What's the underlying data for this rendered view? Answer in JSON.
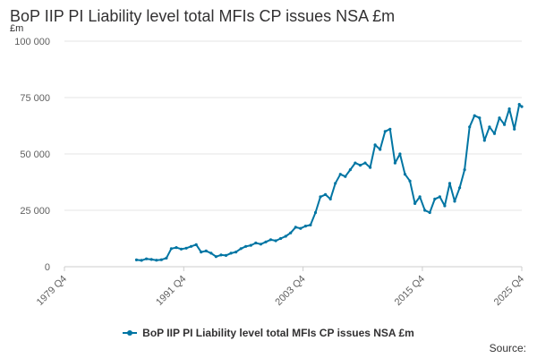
{
  "chart_data": {
    "type": "line",
    "title": "BoP IIP PI Liability level total MFIs CP issues NSA £m",
    "ylabel": "£m",
    "xlabel": "",
    "ylim": [
      0,
      100000
    ],
    "yticks": [
      0,
      25000,
      50000,
      75000,
      100000
    ],
    "ytick_labels": [
      "0",
      "25 000",
      "50 000",
      "75 000",
      "100 000"
    ],
    "x_range": [
      "1979 Q4",
      "2025 Q4"
    ],
    "xtick_labels": [
      "1979 Q4",
      "1991 Q4",
      "2003 Q4",
      "2015 Q4",
      "2025 Q4"
    ],
    "grid": true,
    "legend_position": "bottom",
    "series": [
      {
        "name": "BoP IIP PI Liability level total MFIs CP issues NSA £m",
        "color": "#0075a3",
        "x": [
          "1987 Q1",
          "1987 Q3",
          "1988 Q1",
          "1988 Q3",
          "1989 Q1",
          "1989 Q3",
          "1990 Q1",
          "1990 Q3",
          "1991 Q1",
          "1991 Q3",
          "1992 Q1",
          "1992 Q3",
          "1993 Q1",
          "1993 Q3",
          "1994 Q1",
          "1994 Q3",
          "1995 Q1",
          "1995 Q3",
          "1996 Q1",
          "1996 Q3",
          "1997 Q1",
          "1997 Q3",
          "1998 Q1",
          "1998 Q3",
          "1999 Q1",
          "1999 Q3",
          "2000 Q1",
          "2000 Q3",
          "2001 Q1",
          "2001 Q3",
          "2002 Q1",
          "2002 Q3",
          "2003 Q1",
          "2003 Q3",
          "2004 Q1",
          "2004 Q3",
          "2005 Q1",
          "2005 Q3",
          "2006 Q1",
          "2006 Q3",
          "2007 Q1",
          "2007 Q3",
          "2008 Q1",
          "2008 Q3",
          "2009 Q1",
          "2009 Q3",
          "2010 Q1",
          "2010 Q3",
          "2011 Q1",
          "2011 Q3",
          "2012 Q1",
          "2012 Q3",
          "2013 Q1",
          "2013 Q3",
          "2014 Q1",
          "2014 Q3",
          "2015 Q1",
          "2015 Q3",
          "2016 Q1",
          "2016 Q3",
          "2017 Q1",
          "2017 Q3",
          "2018 Q1",
          "2018 Q3",
          "2019 Q1",
          "2019 Q3",
          "2020 Q1",
          "2020 Q3",
          "2021 Q1",
          "2021 Q3",
          "2022 Q1",
          "2022 Q3",
          "2023 Q1",
          "2023 Q3",
          "2024 Q1",
          "2024 Q3",
          "2025 Q1",
          "2025 Q3",
          "2025 Q4"
        ],
        "values": [
          3000,
          2800,
          3500,
          3200,
          2900,
          3100,
          3800,
          8000,
          8500,
          7800,
          8200,
          9000,
          9800,
          6500,
          7000,
          6000,
          4500,
          5200,
          5000,
          6000,
          6500,
          8000,
          9000,
          9500,
          10500,
          10000,
          11000,
          12000,
          11500,
          12500,
          13500,
          15000,
          17500,
          17000,
          18000,
          18500,
          24000,
          31000,
          32000,
          30000,
          37000,
          41000,
          40000,
          43000,
          46000,
          45000,
          46000,
          44000,
          54000,
          52000,
          60000,
          61000,
          46000,
          50000,
          41000,
          38000,
          28000,
          31000,
          25000,
          24000,
          30000,
          31000,
          27000,
          37000,
          29000,
          35000,
          43000,
          62000,
          67000,
          66000,
          56000,
          62000,
          59000,
          66000,
          63000,
          70000,
          61000,
          72000,
          71000
        ]
      }
    ]
  },
  "legend": {
    "label": "BoP IIP PI Liability level total MFIs CP issues NSA £m"
  },
  "source": {
    "label": "Source:"
  }
}
